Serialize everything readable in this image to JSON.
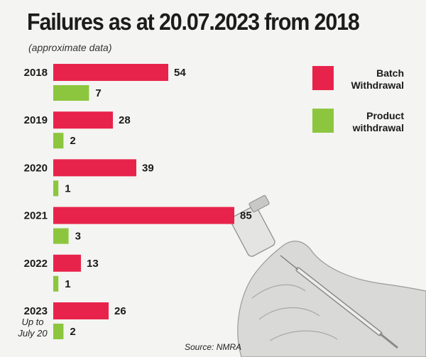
{
  "chart_data": {
    "type": "bar",
    "orientation": "horizontal",
    "title": "Failures as at 20.07.2023 from 2018",
    "subtitle": "(approximate data)",
    "categories": [
      "2018",
      "2019",
      "2020",
      "2021",
      "2022",
      "2023"
    ],
    "category_note": "Up to July 20",
    "series": [
      {
        "name": "Batch Withdrawal",
        "values": [
          54,
          28,
          39,
          85,
          13,
          26
        ],
        "color": "#e8234b"
      },
      {
        "name": "Product withdrawal",
        "values": [
          7,
          2,
          1,
          3,
          1,
          2
        ],
        "color": "#8cc63f"
      }
    ],
    "legend_position": "right",
    "grid": false,
    "source": "Source: NMRA"
  }
}
